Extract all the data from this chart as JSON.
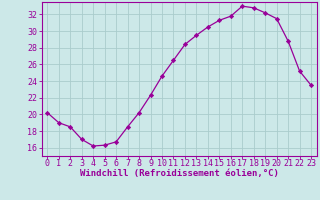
{
  "x": [
    0,
    1,
    2,
    3,
    4,
    5,
    6,
    7,
    8,
    9,
    10,
    11,
    12,
    13,
    14,
    15,
    16,
    17,
    18,
    19,
    20,
    21,
    22,
    23
  ],
  "y": [
    20.2,
    19.0,
    18.5,
    17.0,
    16.2,
    16.3,
    16.7,
    18.5,
    20.2,
    22.3,
    24.6,
    26.5,
    28.4,
    29.5,
    30.5,
    31.3,
    31.8,
    33.0,
    32.8,
    32.2,
    31.5,
    28.8,
    25.2,
    23.5
  ],
  "line_color": "#990099",
  "marker": "D",
  "marker_size": 2.2,
  "bg_color": "#cce8e8",
  "grid_color": "#aacccc",
  "xlabel": "Windchill (Refroidissement éolien,°C)",
  "xlim": [
    -0.5,
    23.5
  ],
  "ylim": [
    15.0,
    33.5
  ],
  "yticks": [
    16,
    18,
    20,
    22,
    24,
    26,
    28,
    30,
    32
  ],
  "xticks": [
    0,
    1,
    2,
    3,
    4,
    5,
    6,
    7,
    8,
    9,
    10,
    11,
    12,
    13,
    14,
    15,
    16,
    17,
    18,
    19,
    20,
    21,
    22,
    23
  ],
  "label_color": "#990099",
  "tick_color": "#990099",
  "spine_color": "#990099",
  "label_fontsize": 6.5,
  "tick_fontsize": 6.0
}
